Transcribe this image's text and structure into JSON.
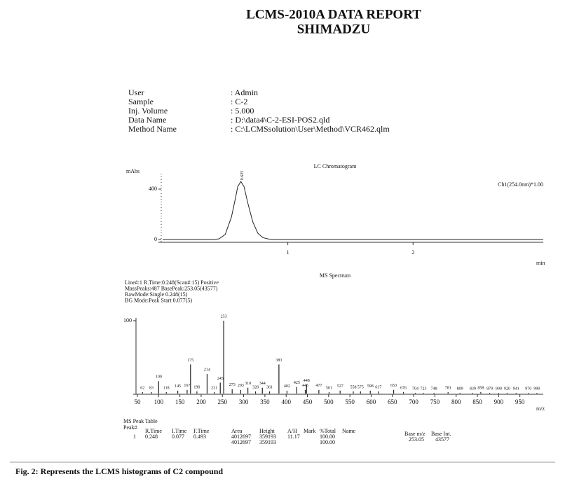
{
  "header": {
    "title": "LCMS-2010A DATA REPORT",
    "subtitle": "SHIMADZU"
  },
  "info": [
    {
      "label": "User",
      "value": ": Admin"
    },
    {
      "label": "Sample",
      "value": ": C-2"
    },
    {
      "label": "Inj. Volume",
      "value": ": 5.000"
    },
    {
      "label": "Data Name",
      "value": ": D:\\data4\\C-2-ESI-POS2.qld"
    },
    {
      "label": "Method Name",
      "value": ": C:\\LCMSsolution\\User\\Method\\VCR462.qlm"
    }
  ],
  "chart_data": [
    {
      "type": "line",
      "title": "LC Chromatogram",
      "ylabel": "mAbs",
      "xlabel": "min",
      "annotation": "Ch1(254.0nm)*1.00",
      "peak_label": "0.625",
      "x": [
        0,
        0.4,
        0.45,
        0.5,
        0.55,
        0.58,
        0.6,
        0.625,
        0.65,
        0.68,
        0.72,
        0.76,
        0.8,
        0.85,
        0.9,
        3.04
      ],
      "series": [
        {
          "name": "Ch1",
          "color": "#222",
          "values": [
            0,
            0,
            5,
            40,
            180,
            320,
            420,
            460,
            420,
            290,
            140,
            50,
            15,
            3,
            0,
            0
          ]
        }
      ],
      "xlim": [
        0,
        3.04
      ],
      "ylim": [
        0,
        500
      ],
      "xticks": [
        1,
        2
      ],
      "yticks": [
        0,
        400
      ]
    },
    {
      "type": "bar",
      "title": "MS Spectrum",
      "xlabel": "m/z",
      "notes": [
        "Line#:1   R.Time:0.248(Scan#:15)  Positive",
        "MassPeaks:487   BasePeak:253.05(43577)",
        "RawMode:Single 0.248(15)",
        "BG Mode:Peak Start 0.077(5)"
      ],
      "x": [
        62,
        83,
        100,
        118,
        145,
        167,
        175,
        190,
        214,
        231,
        245,
        253,
        273,
        293,
        310,
        328,
        344,
        361,
        383,
        402,
        425,
        445,
        448,
        477,
        501,
        527,
        558,
        575,
        598,
        617,
        653,
        676,
        704,
        723,
        748,
        781,
        809,
        839,
        858,
        879,
        900,
        920,
        941,
        970,
        990
      ],
      "values": [
        2,
        2,
        17,
        2,
        4,
        5,
        40,
        3,
        27,
        2,
        15,
        100,
        6,
        5,
        8,
        3,
        8,
        3,
        40,
        4,
        9,
        5,
        12,
        5,
        2,
        4,
        3,
        3,
        4,
        3,
        5,
        2,
        1,
        1,
        1,
        2,
        1,
        1,
        2,
        1,
        1,
        1,
        1,
        1,
        1
      ],
      "color": "#222",
      "xlim": [
        50,
        1005
      ],
      "ylim": [
        0,
        100
      ],
      "xticks": [
        50,
        100,
        150,
        200,
        250,
        300,
        350,
        400,
        450,
        500,
        550,
        600,
        650,
        700,
        750,
        800,
        850,
        900,
        950
      ],
      "yticks": [
        100
      ]
    }
  ],
  "table": {
    "title": "MS Peak Table",
    "headers": [
      "Peak#",
      "R.Time",
      "I.Time",
      "F.Time",
      "Area",
      "Height",
      "A/H",
      "Mark",
      "%Total",
      "Name"
    ],
    "rows": [
      [
        "1",
        "0.248",
        "0.077",
        "0.493",
        "4012697",
        "359193",
        "11.17",
        null,
        "100.00",
        null
      ],
      [
        null,
        null,
        null,
        null,
        "4012697",
        "359193",
        null,
        null,
        "100.00",
        null
      ]
    ],
    "base": {
      "labels": [
        "Base m/z",
        "Base Int."
      ],
      "values": [
        "253.05",
        "43577"
      ]
    }
  },
  "caption": "Fig. 2: Represents the LCMS histograms of C2 compound"
}
